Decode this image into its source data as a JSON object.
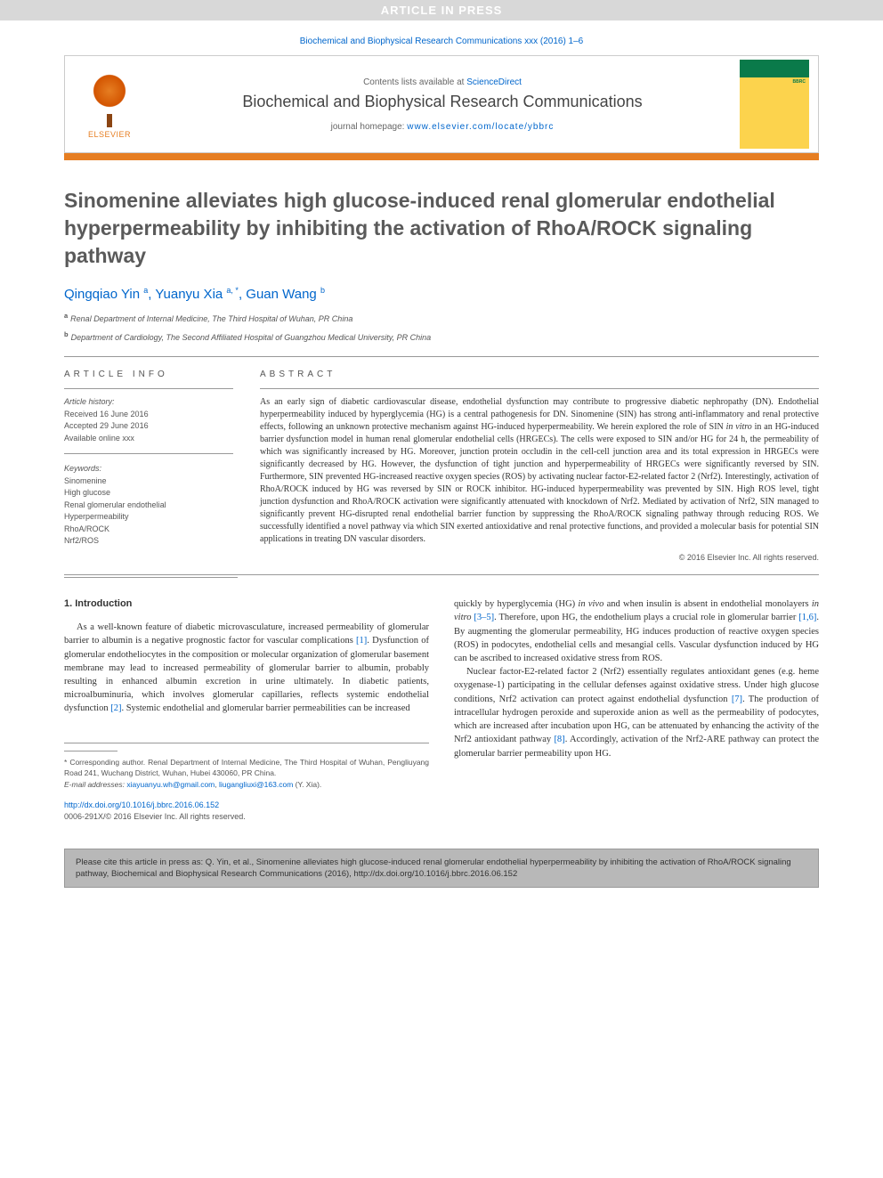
{
  "banner": "ARTICLE IN PRESS",
  "citationLine": "Biochemical and Biophysical Research Communications xxx (2016) 1–6",
  "header": {
    "contentsText": "Contents lists available at ",
    "contentsLink": "ScienceDirect",
    "journalName": "Biochemical and Biophysical Research Communications",
    "homepageLabel": "journal homepage: ",
    "homepageUrl": "www.elsevier.com/locate/ybbrc",
    "elsevierLabel": "ELSEVIER",
    "coverAbbrev": "BBRC"
  },
  "title": "Sinomenine alleviates high glucose-induced renal glomerular endothelial hyperpermeability by inhibiting the activation of RhoA/ROCK signaling pathway",
  "authors": [
    {
      "name": "Qingqiao Yin",
      "affMark": "a"
    },
    {
      "name": "Yuanyu Xia",
      "affMark": "a, *"
    },
    {
      "name": "Guan Wang",
      "affMark": "b"
    }
  ],
  "affiliations": [
    {
      "mark": "a",
      "text": "Renal Department of Internal Medicine, The Third Hospital of Wuhan, PR China"
    },
    {
      "mark": "b",
      "text": "Department of Cardiology, The Second Affiliated Hospital of Guangzhou Medical University, PR China"
    }
  ],
  "articleInfo": {
    "heading": "ARTICLE INFO",
    "historyLabel": "Article history:",
    "received": "Received 16 June 2016",
    "accepted": "Accepted 29 June 2016",
    "online": "Available online xxx",
    "keywordsLabel": "Keywords:",
    "keywords": [
      "Sinomenine",
      "High glucose",
      "Renal glomerular endothelial",
      "Hyperpermeability",
      "RhoA/ROCK",
      "Nrf2/ROS"
    ]
  },
  "abstract": {
    "heading": "ABSTRACT",
    "text": "As an early sign of diabetic cardiovascular disease, endothelial dysfunction may contribute to progressive diabetic nephropathy (DN). Endothelial hyperpermeability induced by hyperglycemia (HG) is a central pathogenesis for DN. Sinomenine (SIN) has strong anti-inflammatory and renal protective effects, following an unknown protective mechanism against HG-induced hyperpermeability. We herein explored the role of SIN in vitro in an HG-induced barrier dysfunction model in human renal glomerular endothelial cells (HRGECs). The cells were exposed to SIN and/or HG for 24 h, the permeability of which was significantly increased by HG. Moreover, junction protein occludin in the cell-cell junction area and its total expression in HRGECs were significantly decreased by HG. However, the dysfunction of tight junction and hyperpermeability of HRGECs were significantly reversed by SIN. Furthermore, SIN prevented HG-increased reactive oxygen species (ROS) by activating nuclear factor-E2-related factor 2 (Nrf2). Interestingly, activation of RhoA/ROCK induced by HG was reversed by SIN or ROCK inhibitor. HG-induced hyperpermeability was prevented by SIN. High ROS level, tight junction dysfunction and RhoA/ROCK activation were significantly attenuated with knockdown of Nrf2. Mediated by activation of Nrf2, SIN managed to significantly prevent HG-disrupted renal endothelial barrier function by suppressing the RhoA/ROCK signaling pathway through reducing ROS. We successfully identified a novel pathway via which SIN exerted antioxidative and renal protective functions, and provided a molecular basis for potential SIN applications in treating DN vascular disorders.",
    "copyright": "© 2016 Elsevier Inc. All rights reserved."
  },
  "body": {
    "introHeading": "1. Introduction",
    "col1p1": "As a well-known feature of diabetic microvasculature, increased permeability of glomerular barrier to albumin is a negative prognostic factor for vascular complications [1]. Dysfunction of glomerular endotheliocytes in the composition or molecular organization of glomerular basement membrane may lead to increased permeability of glomerular barrier to albumin, probably resulting in enhanced albumin excretion in urine ultimately. In diabetic patients, microalbuminuria, which involves glomerular capillaries, reflects systemic endothelial dysfunction [2]. Systemic endothelial and glomerular barrier permeabilities can be increased",
    "col2p1": "quickly by hyperglycemia (HG) in vivo and when insulin is absent in endothelial monolayers in vitro [3–5]. Therefore, upon HG, the endothelium plays a crucial role in glomerular barrier [1,6]. By augmenting the glomerular permeability, HG induces production of reactive oxygen species (ROS) in podocytes, endothelial cells and mesangial cells. Vascular dysfunction induced by HG can be ascribed to increased oxidative stress from ROS.",
    "col2p2": "Nuclear factor-E2-related factor 2 (Nrf2) essentially regulates antioxidant genes (e.g. heme oxygenase-1) participating in the cellular defenses against oxidative stress. Under high glucose conditions, Nrf2 activation can protect against endothelial dysfunction [7]. The production of intracellular hydrogen peroxide and superoxide anion as well as the permeability of podocytes, which are increased after incubation upon HG, can be attenuated by enhancing the activity of the Nrf2 antioxidant pathway [8]. Accordingly, activation of the Nrf2-ARE pathway can protect the glomerular barrier permeability upon HG."
  },
  "footer": {
    "corresponding": "* Corresponding author. Renal Department of Internal Medicine, The Third Hospital of Wuhan, Pengliuyang Road 241, Wuchang District, Wuhan, Hubei 430060, PR China.",
    "emailLabel": "E-mail addresses: ",
    "email1": "xiayuanyu.wh@gmail.com",
    "email2": "liugangliuxi@163.com",
    "emailTail": " (Y. Xia).",
    "doi": "http://dx.doi.org/10.1016/j.bbrc.2016.06.152",
    "issn": "0006-291X/© 2016 Elsevier Inc. All rights reserved."
  },
  "citeBox": "Please cite this article in press as: Q. Yin, et al., Sinomenine alleviates high glucose-induced renal glomerular endothelial hyperpermeability by inhibiting the activation of RhoA/ROCK signaling pathway, Biochemical and Biophysical Research Communications (2016), http://dx.doi.org/10.1016/j.bbrc.2016.06.152"
}
